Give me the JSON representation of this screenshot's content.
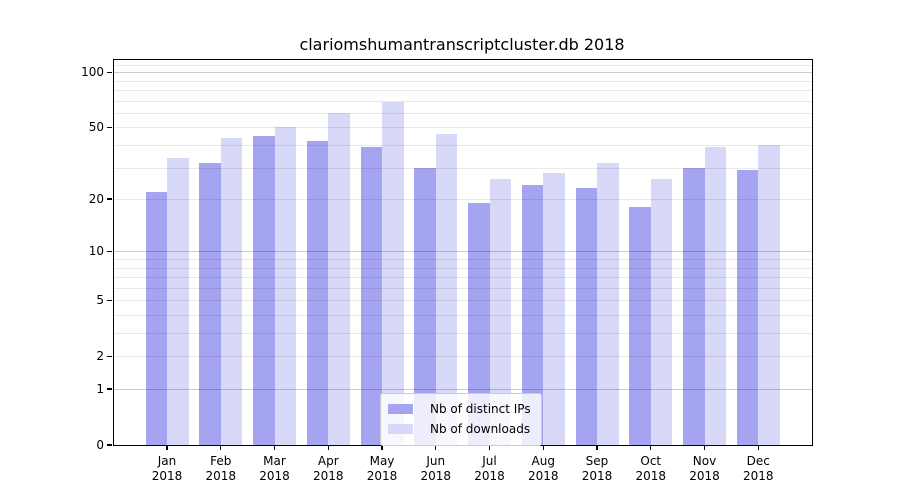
{
  "chart_data": {
    "type": "bar",
    "title": "clariomshumantranscriptcluster.db 2018",
    "categories": [
      "Jan",
      "Feb",
      "Mar",
      "Apr",
      "May",
      "Jun",
      "Jul",
      "Aug",
      "Sep",
      "Oct",
      "Nov",
      "Dec"
    ],
    "x_tick_year": "2018",
    "series": [
      {
        "name": "Nb of distinct IPs",
        "color": "#a4a4f0",
        "values": [
          22,
          32,
          45,
          42,
          39,
          30,
          19,
          24,
          23,
          18,
          30,
          29
        ]
      },
      {
        "name": "Nb of downloads",
        "color": "#d8d8f8",
        "values": [
          34,
          44,
          50,
          60,
          69,
          46,
          26,
          28,
          32,
          26,
          39,
          40
        ]
      }
    ],
    "yscale": "log10(1+value)",
    "yticks": [
      0,
      1,
      2,
      5,
      10,
      20,
      50,
      100
    ],
    "ylim": [
      0,
      117
    ],
    "xlabel": "",
    "ylabel": "",
    "grid": "horizontal; minor lines at 2-9 per decade, major lines at powers of 10, drawn over bars",
    "legend_position": "lower center"
  }
}
